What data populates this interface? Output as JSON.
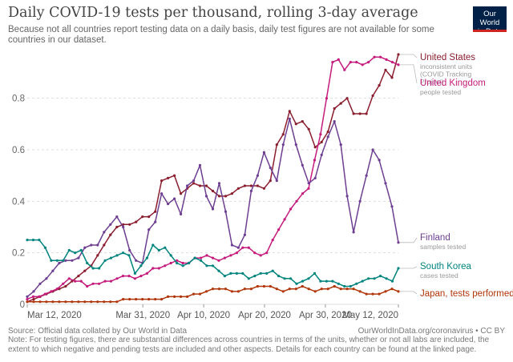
{
  "header": {
    "title": "Daily COVID-19 tests per thousand, rolling 3-day average",
    "subtitle": "Because not all countries report testing data on a daily basis, daily test figures are not available for some countries in our dataset.",
    "logo_line1": "Our World",
    "logo_line2": "in Data"
  },
  "footer": {
    "source": "Source: Official data collated by Our World in Data",
    "url": "OurWorldInData.org/coronavirus • CC BY",
    "note": "Note: For testing figures, there are substantial differences across countries in terms of the units, whether or not all labs are included, the extent to which negative and pending tests are included and other aspects. Details for each country can be found at the linked page."
  },
  "chart_data": {
    "type": "line",
    "title": "Daily COVID-19 tests per thousand, rolling 3-day average",
    "xlabel": "",
    "ylabel": "",
    "x_start": "Mar 12, 2020",
    "x_end": "May 12, 2020",
    "ylim": [
      0,
      0.97
    ],
    "yticks": [
      0,
      0.2,
      0.4,
      0.6,
      0.8
    ],
    "ytick_labels": [
      "0",
      "0.2",
      "0.4",
      "0.6",
      "0.8"
    ],
    "xticks": [
      "Mar 12, 2020",
      "Mar 31, 2020",
      "Apr 10, 2020",
      "Apr 20, 2020",
      "Apr 30, 2020",
      "May 12, 2020"
    ],
    "grid": true,
    "legend": "right",
    "series": [
      {
        "name": "United States",
        "note": "inconsistent units (COVID Tracking Project)",
        "color": "#8b1e2e",
        "start": "Mar 12, 2020",
        "values": [
          0.01,
          0.02,
          0.03,
          0.04,
          0.05,
          0.06,
          0.07,
          0.09,
          0.11,
          0.13,
          0.15,
          0.19,
          0.23,
          0.27,
          0.3,
          0.31,
          0.31,
          0.32,
          0.34,
          0.34,
          0.36,
          0.48,
          0.49,
          0.5,
          0.43,
          0.45,
          0.47,
          0.46,
          0.46,
          0.44,
          0.42,
          0.42,
          0.43,
          0.45,
          0.46,
          0.46,
          0.46,
          0.45,
          0.48,
          0.62,
          0.66,
          0.75,
          0.7,
          0.71,
          0.68,
          0.61,
          0.63,
          0.67,
          0.76,
          0.78,
          0.8,
          0.74,
          0.74,
          0.74,
          0.81,
          0.85,
          0.91,
          0.88,
          0.97
        ]
      },
      {
        "name": "United Kingdom",
        "note": "people tested",
        "color": "#c51b7d",
        "start": "Mar 12, 2020",
        "values": [
          0.02,
          0.03,
          0.03,
          0.04,
          0.05,
          0.06,
          0.08,
          0.1,
          0.09,
          0.09,
          0.07,
          0.08,
          0.08,
          0.09,
          0.09,
          0.1,
          0.11,
          0.11,
          0.1,
          0.11,
          0.12,
          0.14,
          0.14,
          0.15,
          0.16,
          0.17,
          0.16,
          0.16,
          0.18,
          0.18,
          0.19,
          0.18,
          0.17,
          0.18,
          0.19,
          0.2,
          0.22,
          0.22,
          0.2,
          0.19,
          0.2,
          0.25,
          0.29,
          0.33,
          0.37,
          0.4,
          0.43,
          0.45,
          0.56,
          0.66,
          0.8,
          0.94,
          0.95,
          0.91,
          0.94,
          0.94,
          0.93,
          0.94,
          0.96,
          0.96,
          0.95,
          0.94,
          0.93
        ]
      },
      {
        "name": "Finland",
        "note": "samples tested",
        "color": "#6d3e91",
        "start": "Mar 12, 2020",
        "values": [
          0.03,
          0.05,
          0.08,
          0.1,
          0.13,
          0.16,
          0.17,
          0.17,
          0.18,
          0.22,
          0.23,
          0.23,
          0.28,
          0.31,
          0.34,
          0.3,
          0.21,
          0.17,
          0.16,
          0.29,
          0.32,
          0.43,
          0.39,
          0.41,
          0.35,
          0.46,
          0.48,
          0.54,
          0.42,
          0.37,
          0.47,
          0.36,
          0.23,
          0.22,
          0.27,
          0.44,
          0.5,
          0.59,
          0.53,
          0.48,
          0.62,
          0.72,
          0.62,
          0.54,
          0.47,
          0.49,
          0.58,
          0.65,
          0.71,
          0.62,
          0.42,
          0.28,
          0.4,
          0.5,
          0.6,
          0.56,
          0.47,
          0.38,
          0.24
        ]
      },
      {
        "name": "South Korea",
        "note": "cases tested",
        "color": "#00847e",
        "start": "Mar 12, 2020",
        "values": [
          0.25,
          0.25,
          0.25,
          0.22,
          0.17,
          0.17,
          0.17,
          0.21,
          0.2,
          0.21,
          0.16,
          0.14,
          0.14,
          0.17,
          0.18,
          0.19,
          0.2,
          0.19,
          0.12,
          0.15,
          0.18,
          0.23,
          0.21,
          0.22,
          0.19,
          0.16,
          0.15,
          0.16,
          0.18,
          0.17,
          0.15,
          0.15,
          0.13,
          0.11,
          0.12,
          0.12,
          0.12,
          0.1,
          0.11,
          0.12,
          0.12,
          0.13,
          0.11,
          0.1,
          0.1,
          0.08,
          0.09,
          0.1,
          0.12,
          0.09,
          0.09,
          0.09,
          0.08,
          0.07,
          0.07,
          0.08,
          0.09,
          0.1,
          0.1,
          0.11,
          0.1,
          0.09,
          0.14
        ]
      },
      {
        "name": "Japan, tests performed",
        "note": "",
        "color": "#b13507",
        "start": "Mar 12, 2020",
        "values": [
          0.01,
          0.01,
          0.01,
          0.01,
          0.01,
          0.01,
          0.01,
          0.01,
          0.01,
          0.01,
          0.01,
          0.01,
          0.01,
          0.01,
          0.01,
          0.02,
          0.02,
          0.02,
          0.02,
          0.02,
          0.02,
          0.02,
          0.03,
          0.03,
          0.03,
          0.03,
          0.04,
          0.04,
          0.05,
          0.06,
          0.06,
          0.06,
          0.05,
          0.05,
          0.06,
          0.06,
          0.07,
          0.07,
          0.07,
          0.06,
          0.05,
          0.06,
          0.06,
          0.07,
          0.06,
          0.05,
          0.06,
          0.06,
          0.07,
          0.06,
          0.06,
          0.06,
          0.05,
          0.04,
          0.04,
          0.04,
          0.05,
          0.06,
          0.05
        ]
      }
    ]
  }
}
